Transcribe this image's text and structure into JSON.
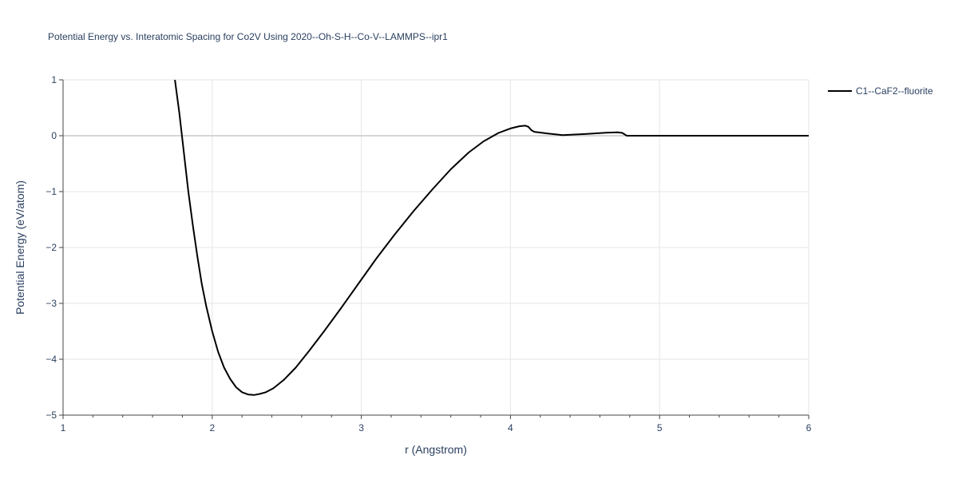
{
  "chart_data": {
    "type": "line",
    "title": "Potential Energy vs. Interatomic Spacing for Co2V Using 2020--Oh-S-H--Co-V--LAMMPS--ipr1",
    "xlabel": "r (Angstrom)",
    "ylabel": "Potential Energy (eV/atom)",
    "xlim": [
      1,
      6
    ],
    "ylim": [
      -5,
      1
    ],
    "xticks": [
      1,
      2,
      3,
      4,
      5,
      6
    ],
    "xtick_labels": [
      "1",
      "2",
      "3",
      "4",
      "5",
      "6"
    ],
    "yticks": [
      1,
      0,
      -1,
      -2,
      -3,
      -4,
      -5
    ],
    "ytick_labels": [
      "1",
      "0",
      "−1",
      "−2",
      "−3",
      "−4",
      "−5"
    ],
    "grid": true,
    "legend_position": "top-right",
    "series": [
      {
        "name": "C1--CaF2--fluorite",
        "color": "#000000",
        "x": [
          1.75,
          1.78,
          1.81,
          1.84,
          1.87,
          1.9,
          1.93,
          1.96,
          2.0,
          2.04,
          2.08,
          2.12,
          2.16,
          2.2,
          2.24,
          2.28,
          2.32,
          2.36,
          2.41,
          2.48,
          2.56,
          2.65,
          2.75,
          2.86,
          2.98,
          3.1,
          3.22,
          3.35,
          3.48,
          3.6,
          3.72,
          3.82,
          3.92,
          4.0,
          4.06,
          4.1,
          4.12,
          4.14,
          4.16,
          4.25,
          4.35,
          4.5,
          4.65,
          4.72,
          4.75,
          4.78,
          4.82,
          5.0,
          5.5,
          6.0
        ],
        "y": [
          1.0,
          0.4,
          -0.3,
          -1.0,
          -1.6,
          -2.15,
          -2.65,
          -3.05,
          -3.5,
          -3.87,
          -4.15,
          -4.35,
          -4.5,
          -4.59,
          -4.63,
          -4.64,
          -4.62,
          -4.59,
          -4.52,
          -4.37,
          -4.15,
          -3.85,
          -3.5,
          -3.1,
          -2.65,
          -2.2,
          -1.78,
          -1.35,
          -0.95,
          -0.6,
          -0.3,
          -0.1,
          0.05,
          0.13,
          0.17,
          0.18,
          0.16,
          0.1,
          0.07,
          0.04,
          0.01,
          0.03,
          0.055,
          0.06,
          0.05,
          0.0,
          0.0,
          0.0,
          0.0,
          0.0
        ]
      }
    ]
  }
}
